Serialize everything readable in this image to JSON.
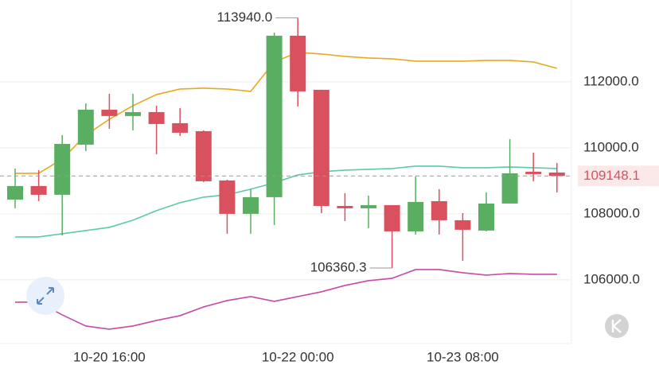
{
  "chart_data": {
    "type": "candlestick",
    "categories": [
      null,
      null,
      null,
      null,
      "10-20 16:00",
      null,
      null,
      null,
      null,
      null,
      null,
      null,
      "10-22 00:00",
      null,
      null,
      null,
      null,
      null,
      null,
      "10-23 08:00",
      null,
      null,
      null,
      null
    ],
    "open": [
      108433,
      108843,
      108578,
      110096,
      111157,
      110964,
      111084,
      110747,
      110506,
      109012,
      108000,
      108506,
      113398,
      111759,
      108240,
      108168,
      108265,
      107469,
      108385,
      107807,
      107494,
      108313,
      109277,
      109253
    ],
    "high": [
      109373,
      109325,
      110385,
      111349,
      111639,
      111639,
      111277,
      111205,
      110530,
      109036,
      108747,
      113494,
      113940,
      111759,
      108626,
      108554,
      108265,
      109132,
      108747,
      108023,
      108650,
      110265,
      109855,
      109542
    ],
    "low": [
      108168,
      108385,
      107349,
      109903,
      110578,
      110530,
      109807,
      110361,
      108964,
      107397,
      107397,
      107662,
      111253,
      108023,
      107783,
      107566,
      106360.3,
      107373,
      107373,
      106578,
      107469,
      108313,
      108988,
      108650
    ],
    "close": [
      108843,
      108578,
      110120,
      111157,
      110964,
      111084,
      110723,
      110458,
      108988,
      108000,
      108506,
      113398,
      111711,
      108240,
      108168,
      108265,
      107469,
      108361,
      107807,
      107518,
      108313,
      109229,
      109205,
      109148.1
    ],
    "up_color": "#5aae61",
    "down_color": "#d9515e",
    "lines": [
      {
        "color": "#e8a91f",
        "values": [
          109229,
          109229,
          109662,
          110385,
          110867,
          111277,
          111614,
          111783,
          111807,
          111783,
          111711,
          112602,
          112892,
          112844,
          112771,
          112723,
          112699,
          112627,
          112627,
          112627,
          112651,
          112651,
          112602,
          112410
        ]
      },
      {
        "color": "#5ec9a8",
        "values": [
          107300,
          107300,
          107397,
          107494,
          107590,
          107807,
          108096,
          108337,
          108506,
          108578,
          108747,
          108940,
          109180,
          109277,
          109325,
          109349,
          109373,
          109446,
          109446,
          109397,
          109397,
          109422,
          109397,
          109373
        ]
      },
      {
        "color": "#c64aa8",
        "values": [
          105324,
          105324,
          104939,
          104601,
          104505,
          104601,
          104770,
          104915,
          105180,
          105373,
          105493,
          105349,
          105493,
          105638,
          105831,
          105975,
          106047,
          106312,
          106312,
          106216,
          106144,
          106192,
          106168,
          106168
        ]
      }
    ],
    "ylim": [
      104070,
      114480
    ],
    "yticks": [
      {
        "value": 106000,
        "label": "106000.0"
      },
      {
        "value": 108000,
        "label": "108000.0"
      },
      {
        "value": 110000,
        "label": "110000.0"
      },
      {
        "value": 112000,
        "label": "112000.0"
      }
    ],
    "grid": true,
    "last_price": 109148.1,
    "annotations": [
      {
        "value": 113940,
        "label": "113940.0"
      },
      {
        "value": 106360.3,
        "label": "106360.3"
      }
    ]
  }
}
